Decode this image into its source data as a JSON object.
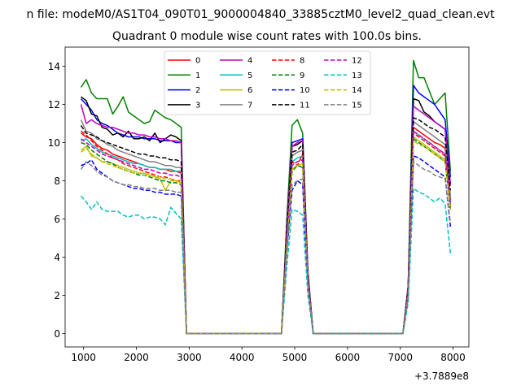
{
  "chart_data": {
    "type": "line",
    "suptitle": "n file: modeM0/AS1T04_090T01_9000004840_33885cztM0_level2_quad_clean.evt",
    "title": "Quadrant 0 module wise count rates with 100.0s bins.",
    "xlabel": "",
    "ylabel": "",
    "x_offset_text": "+3.7889e8",
    "xlim": [
      650,
      8300
    ],
    "ylim": [
      -0.7,
      15
    ],
    "xticks": [
      1000,
      2000,
      3000,
      4000,
      5000,
      6000,
      7000,
      8000
    ],
    "xtick_labels": [
      "1000",
      "2000",
      "3000",
      "4000",
      "5000",
      "6000",
      "7000",
      "8000"
    ],
    "yticks": [
      0,
      2,
      4,
      6,
      8,
      10,
      12,
      14
    ],
    "ytick_labels": [
      "0",
      "2",
      "4",
      "6",
      "8",
      "10",
      "12",
      "14"
    ],
    "x": [
      950,
      1050,
      1150,
      1250,
      1350,
      1450,
      1550,
      1650,
      1750,
      1850,
      1950,
      2050,
      2150,
      2250,
      2350,
      2450,
      2550,
      2650,
      2750,
      2850,
      2950,
      3050,
      3150,
      3250,
      3350,
      3450,
      3550,
      3650,
      3750,
      3850,
      3950,
      4050,
      4150,
      4250,
      4350,
      4450,
      4550,
      4650,
      4750,
      4850,
      4950,
      5050,
      5150,
      5250,
      5350,
      5450,
      5550,
      5650,
      5750,
      5850,
      5950,
      6050,
      6150,
      6250,
      6350,
      6450,
      6550,
      6650,
      6750,
      6850,
      6950,
      7050,
      7150,
      7250,
      7350,
      7450,
      7550,
      7650,
      7750,
      7850,
      7950
    ],
    "legend": {
      "location": "upper center",
      "ncol": 4
    },
    "series": [
      {
        "name": "0",
        "color": "#ff0000",
        "dash": "solid",
        "values": [
          10.5,
          10.3,
          10.2,
          9.9,
          9.7,
          9.6,
          9.4,
          9.3,
          9.2,
          9.1,
          9.0,
          8.9,
          8.8,
          8.7,
          8.7,
          8.6,
          8.6,
          8.5,
          8.5,
          8.4,
          0,
          0,
          0,
          0,
          0,
          0,
          0,
          0,
          0,
          0,
          0,
          0,
          0,
          0,
          0,
          0,
          0,
          0,
          0,
          5,
          9.3,
          9.5,
          9.6,
          3,
          0,
          0,
          0,
          0,
          0,
          0,
          0,
          0,
          0,
          0,
          0,
          0,
          0,
          0,
          0,
          0,
          0,
          0,
          2,
          10.8,
          10.6,
          10.4,
          10.2,
          10.0,
          9.9,
          9.7,
          7.0
        ]
      },
      {
        "name": "1",
        "color": "#008000",
        "dash": "solid",
        "values": [
          12.9,
          13.3,
          12.6,
          12.3,
          12.3,
          12.3,
          11.5,
          11.9,
          12.4,
          11.6,
          11.4,
          11.2,
          11.0,
          11.1,
          11.7,
          11.5,
          11.3,
          11.2,
          11.0,
          10.8,
          0,
          0,
          0,
          0,
          0,
          0,
          0,
          0,
          0,
          0,
          0,
          0,
          0,
          0,
          0,
          0,
          0,
          0,
          0,
          6,
          10.9,
          11.2,
          10.5,
          3.3,
          0,
          0,
          0,
          0,
          0,
          0,
          0,
          0,
          0,
          0,
          0,
          0,
          0,
          0,
          0,
          0,
          0,
          0,
          2.5,
          14.3,
          13.4,
          13.4,
          12.7,
          12.0,
          12.3,
          12.6,
          8.5
        ]
      },
      {
        "name": "2",
        "color": "#0000ff",
        "dash": "solid",
        "values": [
          12.3,
          12.0,
          11.7,
          11.2,
          11.0,
          10.9,
          10.7,
          10.5,
          10.4,
          10.3,
          10.3,
          10.3,
          10.2,
          10.2,
          10.2,
          10.1,
          10.1,
          10.1,
          10.0,
          10.0,
          0,
          0,
          0,
          0,
          0,
          0,
          0,
          0,
          0,
          0,
          0,
          0,
          0,
          0,
          0,
          0,
          0,
          0,
          0,
          5.5,
          10.0,
          10.1,
          10.2,
          3.2,
          0,
          0,
          0,
          0,
          0,
          0,
          0,
          0,
          0,
          0,
          0,
          0,
          0,
          0,
          0,
          0,
          0,
          0,
          2.4,
          13.0,
          12.6,
          12.4,
          12.2,
          12.0,
          11.6,
          11.2,
          8.2
        ]
      },
      {
        "name": "3",
        "color": "#000000",
        "dash": "solid",
        "values": [
          12.4,
          12.2,
          11.5,
          11.4,
          10.8,
          10.7,
          10.4,
          10.5,
          10.3,
          10.6,
          10.2,
          10.2,
          10.3,
          10.1,
          10.5,
          10.0,
          10.2,
          10.4,
          10.3,
          10.1,
          0,
          0,
          0,
          0,
          0,
          0,
          0,
          0,
          0,
          0,
          0,
          0,
          0,
          0,
          0,
          0,
          0,
          0,
          0,
          5.5,
          9.8,
          9.9,
          10.1,
          3.1,
          0,
          0,
          0,
          0,
          0,
          0,
          0,
          0,
          0,
          0,
          0,
          0,
          0,
          0,
          0,
          0,
          0,
          0,
          2.5,
          12.3,
          12.2,
          11.6,
          11.4,
          11.1,
          10.9,
          10.7,
          7.8
        ]
      },
      {
        "name": "4",
        "color": "#bf00bf",
        "dash": "solid",
        "values": [
          12.0,
          11.0,
          11.2,
          11.0,
          10.9,
          10.8,
          10.8,
          10.7,
          10.6,
          10.5,
          10.5,
          10.4,
          10.4,
          10.3,
          10.3,
          10.2,
          10.2,
          10.1,
          10.1,
          10.0,
          0,
          0,
          0,
          0,
          0,
          0,
          0,
          0,
          0,
          0,
          0,
          0,
          0,
          0,
          0,
          0,
          0,
          0,
          0,
          5.5,
          9.8,
          10.0,
          10.1,
          3.1,
          0,
          0,
          0,
          0,
          0,
          0,
          0,
          0,
          0,
          0,
          0,
          0,
          0,
          0,
          0,
          0,
          0,
          0,
          2.4,
          11.9,
          11.7,
          11.5,
          11.3,
          11.1,
          10.9,
          10.7,
          7.8
        ]
      },
      {
        "name": "5",
        "color": "#00bfbf",
        "dash": "solid",
        "values": [
          10.1,
          10.2,
          9.9,
          9.7,
          9.5,
          9.4,
          9.3,
          9.2,
          9.1,
          9.0,
          8.9,
          8.9,
          8.8,
          8.7,
          8.7,
          8.6,
          8.6,
          8.6,
          8.5,
          8.5,
          0,
          0,
          0,
          0,
          0,
          0,
          0,
          0,
          0,
          0,
          0,
          0,
          0,
          0,
          0,
          0,
          0,
          0,
          0,
          5,
          9.0,
          9.2,
          9.3,
          2.8,
          0,
          0,
          0,
          0,
          0,
          0,
          0,
          0,
          0,
          0,
          0,
          0,
          0,
          0,
          0,
          0,
          0,
          0,
          2.2,
          10.6,
          10.4,
          10.2,
          10.0,
          9.8,
          9.6,
          9.4,
          6.8
        ]
      },
      {
        "name": "6",
        "color": "#bfbf00",
        "dash": "solid",
        "values": [
          9.6,
          9.8,
          9.3,
          9.2,
          9.0,
          9.0,
          8.9,
          8.8,
          8.7,
          8.6,
          8.5,
          8.4,
          8.4,
          8.3,
          8.2,
          8.1,
          7.5,
          8.0,
          8.0,
          7.9,
          0,
          0,
          0,
          0,
          0,
          0,
          0,
          0,
          0,
          0,
          0,
          0,
          0,
          0,
          0,
          0,
          0,
          0,
          0,
          4.5,
          8.6,
          8.8,
          8.9,
          2.7,
          0,
          0,
          0,
          0,
          0,
          0,
          0,
          0,
          0,
          0,
          0,
          0,
          0,
          0,
          0,
          0,
          0,
          0,
          2.1,
          10.3,
          10.1,
          9.9,
          9.7,
          9.5,
          9.3,
          9.1,
          6.6
        ]
      },
      {
        "name": "7",
        "color": "#808080",
        "dash": "solid",
        "values": [
          11.2,
          10.6,
          10.5,
          10.2,
          10.1,
          9.9,
          9.8,
          9.6,
          9.5,
          9.4,
          9.3,
          9.2,
          9.1,
          9.0,
          9.0,
          8.9,
          8.8,
          8.8,
          8.7,
          8.7,
          0,
          0,
          0,
          0,
          0,
          0,
          0,
          0,
          0,
          0,
          0,
          0,
          0,
          0,
          0,
          0,
          0,
          0,
          0,
          5,
          9.3,
          9.5,
          9.6,
          2.9,
          0,
          0,
          0,
          0,
          0,
          0,
          0,
          0,
          0,
          0,
          0,
          0,
          0,
          0,
          0,
          0,
          0,
          0,
          2.2,
          11.1,
          10.9,
          10.7,
          10.5,
          10.3,
          10.1,
          9.9,
          7.2
        ]
      },
      {
        "name": "8",
        "color": "#ff0000",
        "dash": "dashed",
        "values": [
          10.6,
          10.4,
          10.1,
          9.8,
          9.6,
          9.4,
          9.2,
          9.1,
          8.9,
          8.8,
          8.7,
          8.6,
          8.5,
          8.4,
          8.3,
          8.2,
          8.2,
          8.1,
          8.0,
          8.0,
          0,
          0,
          0,
          0,
          0,
          0,
          0,
          0,
          0,
          0,
          0,
          0,
          0,
          0,
          0,
          0,
          0,
          0,
          0,
          4.8,
          9.0,
          8.8,
          9.4,
          2.8,
          0,
          0,
          0,
          0,
          0,
          0,
          0,
          0,
          0,
          0,
          0,
          0,
          0,
          0,
          0,
          0,
          0,
          0,
          2.1,
          10.5,
          10.3,
          10.1,
          9.9,
          9.7,
          9.5,
          9.3,
          6.7
        ]
      },
      {
        "name": "9",
        "color": "#008000",
        "dash": "dashed",
        "values": [
          10.0,
          9.9,
          9.6,
          9.4,
          9.2,
          9.0,
          8.9,
          8.7,
          8.6,
          8.5,
          8.4,
          8.3,
          8.3,
          8.2,
          8.1,
          8.0,
          8.0,
          7.9,
          7.9,
          7.8,
          0,
          0,
          0,
          0,
          0,
          0,
          0,
          0,
          0,
          0,
          0,
          0,
          0,
          0,
          0,
          0,
          0,
          0,
          0,
          4.6,
          8.5,
          8.8,
          8.7,
          2.7,
          0,
          0,
          0,
          0,
          0,
          0,
          0,
          0,
          0,
          0,
          0,
          0,
          0,
          0,
          0,
          0,
          0,
          0,
          2.0,
          10.2,
          10.0,
          9.8,
          9.6,
          9.4,
          9.2,
          9.0,
          6.5
        ]
      },
      {
        "name": "10",
        "color": "#0000ff",
        "dash": "dashed",
        "values": [
          8.8,
          8.9,
          9.1,
          8.6,
          8.4,
          8.2,
          8.0,
          7.9,
          7.8,
          7.7,
          7.6,
          7.6,
          7.5,
          7.5,
          7.4,
          7.4,
          7.3,
          7.3,
          7.3,
          7.2,
          0,
          0,
          0,
          0,
          0,
          0,
          0,
          0,
          0,
          0,
          0,
          0,
          0,
          0,
          0,
          0,
          0,
          0,
          0,
          4.3,
          7.5,
          8.0,
          7.8,
          2.5,
          0,
          0,
          0,
          0,
          0,
          0,
          0,
          0,
          0,
          0,
          0,
          0,
          0,
          0,
          0,
          0,
          0,
          0,
          1.9,
          9.3,
          9.2,
          9.0,
          8.8,
          8.6,
          8.4,
          8.2,
          5.6
        ]
      },
      {
        "name": "11",
        "color": "#000000",
        "dash": "dashed",
        "values": [
          10.9,
          10.5,
          10.4,
          10.3,
          10.1,
          10.0,
          9.9,
          9.8,
          9.7,
          9.6,
          9.5,
          9.4,
          9.4,
          9.3,
          9.3,
          9.2,
          9.2,
          9.1,
          9.1,
          9.0,
          0,
          0,
          0,
          0,
          0,
          0,
          0,
          0,
          0,
          0,
          0,
          0,
          0,
          0,
          0,
          0,
          0,
          0,
          0,
          5.2,
          9.5,
          9.6,
          9.9,
          3.0,
          0,
          0,
          0,
          0,
          0,
          0,
          0,
          0,
          0,
          0,
          0,
          0,
          0,
          0,
          0,
          0,
          0,
          0,
          2.3,
          11.3,
          11.2,
          11.0,
          10.8,
          10.7,
          10.5,
          10.3,
          7.5
        ]
      },
      {
        "name": "12",
        "color": "#bf00bf",
        "dash": "dashed",
        "values": [
          10.2,
          10.0,
          9.8,
          9.6,
          9.4,
          9.3,
          9.2,
          9.1,
          9.0,
          8.9,
          8.8,
          8.7,
          8.6,
          8.6,
          8.5,
          8.4,
          8.4,
          8.3,
          8.3,
          8.2,
          0,
          0,
          0,
          0,
          0,
          0,
          0,
          0,
          0,
          0,
          0,
          0,
          0,
          0,
          0,
          0,
          0,
          0,
          0,
          4.8,
          8.8,
          9.0,
          9.1,
          2.8,
          0,
          0,
          0,
          0,
          0,
          0,
          0,
          0,
          0,
          0,
          0,
          0,
          0,
          0,
          0,
          0,
          0,
          0,
          2.1,
          10.6,
          10.4,
          10.2,
          10.0,
          9.8,
          9.6,
          9.4,
          6.8
        ]
      },
      {
        "name": "13",
        "color": "#00bfbf",
        "dash": "dashed",
        "values": [
          7.2,
          6.9,
          6.5,
          6.9,
          6.5,
          6.4,
          6.4,
          6.4,
          6.2,
          6.1,
          6.2,
          6.2,
          6.0,
          6.1,
          6.1,
          6.0,
          5.7,
          6.6,
          6.3,
          6.0,
          0,
          0,
          0,
          0,
          0,
          0,
          0,
          0,
          0,
          0,
          0,
          0,
          0,
          0,
          0,
          0,
          0,
          0,
          0,
          3.5,
          6.5,
          6.4,
          6.2,
          2.0,
          0,
          0,
          0,
          0,
          0,
          0,
          0,
          0,
          0,
          0,
          0,
          0,
          0,
          0,
          0,
          0,
          0,
          0,
          1.6,
          7.6,
          7.4,
          7.3,
          7.1,
          6.9,
          7.1,
          6.8,
          4.2
        ]
      },
      {
        "name": "14",
        "color": "#bfbf00",
        "dash": "dashed",
        "values": [
          9.5,
          9.7,
          9.4,
          9.2,
          9.0,
          8.9,
          8.8,
          8.7,
          8.6,
          8.5,
          8.4,
          8.4,
          8.3,
          8.3,
          8.2,
          8.2,
          8.1,
          8.1,
          8.0,
          8.0,
          0,
          0,
          0,
          0,
          0,
          0,
          0,
          0,
          0,
          0,
          0,
          0,
          0,
          0,
          0,
          0,
          0,
          0,
          0,
          4.6,
          8.6,
          8.8,
          8.9,
          2.7,
          0,
          0,
          0,
          0,
          0,
          0,
          0,
          0,
          0,
          0,
          0,
          0,
          0,
          0,
          0,
          0,
          0,
          0,
          2.0,
          10.1,
          9.9,
          9.8,
          9.6,
          9.4,
          9.2,
          9.0,
          6.5
        ]
      },
      {
        "name": "15",
        "color": "#808080",
        "dash": "dashed",
        "values": [
          8.6,
          9.0,
          8.8,
          8.5,
          8.3,
          8.2,
          8.0,
          7.9,
          7.8,
          7.8,
          7.7,
          7.7,
          7.6,
          7.6,
          7.6,
          7.5,
          7.5,
          7.5,
          7.4,
          7.4,
          0,
          0,
          0,
          0,
          0,
          0,
          0,
          0,
          0,
          0,
          0,
          0,
          0,
          0,
          0,
          0,
          0,
          0,
          0,
          4.3,
          7.8,
          8.0,
          8.1,
          2.5,
          0,
          0,
          0,
          0,
          0,
          0,
          0,
          0,
          0,
          0,
          0,
          0,
          0,
          0,
          0,
          0,
          0,
          0,
          1.9,
          9.0,
          8.8,
          8.6,
          8.5,
          8.3,
          8.2,
          8.1,
          5.8
        ]
      }
    ]
  }
}
